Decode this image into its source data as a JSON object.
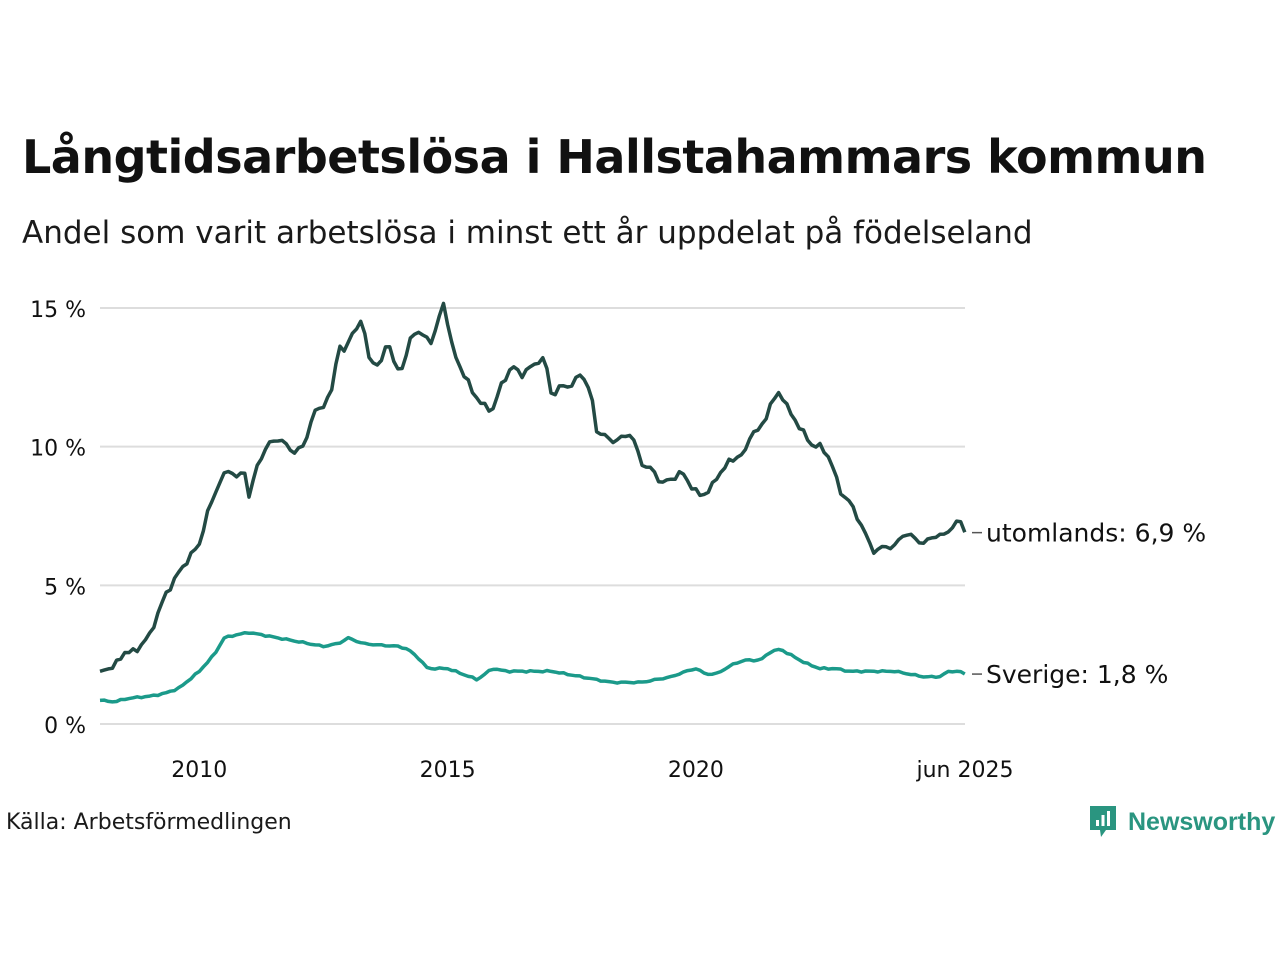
{
  "title": "Långtidsarbetslösa i Hallstahammars kommun",
  "subtitle": "Andel som varit arbetslösa i minst ett år uppdelat på födelseland",
  "source": "Källa: Arbetsförmedlingen",
  "brand": {
    "name": "Newsworthy",
    "icon": "newsworthy-logo-icon",
    "color": "#2a9580"
  },
  "chart_data": {
    "type": "line",
    "x_start": 2008.0,
    "x_end": 2025.42,
    "x_step": 0.0833,
    "ylim": [
      0,
      15.5
    ],
    "y_ticks": [
      {
        "value": 0,
        "label": "0 %"
      },
      {
        "value": 5,
        "label": "5 %"
      },
      {
        "value": 10,
        "label": "10 %"
      },
      {
        "value": 15,
        "label": "15 %"
      }
    ],
    "x_ticks": [
      {
        "value": 2010,
        "label": "2010"
      },
      {
        "value": 2015,
        "label": "2015"
      },
      {
        "value": 2020,
        "label": "2020"
      },
      {
        "value": 2025.42,
        "label": "jun 2025"
      }
    ],
    "grid": true,
    "series": [
      {
        "name": "utomlands",
        "color": "#234a44",
        "end_label": "utomlands: 6,9 %",
        "end_value": 6.9,
        "keypoints": [
          [
            2008.0,
            1.9
          ],
          [
            2008.3,
            2.1
          ],
          [
            2008.5,
            2.6
          ],
          [
            2008.7,
            2.6
          ],
          [
            2009.0,
            3.2
          ],
          [
            2009.3,
            4.6
          ],
          [
            2009.6,
            5.5
          ],
          [
            2010.0,
            6.5
          ],
          [
            2010.2,
            7.8
          ],
          [
            2010.4,
            8.7
          ],
          [
            2010.6,
            9.2
          ],
          [
            2010.8,
            8.8
          ],
          [
            2010.9,
            9.3
          ],
          [
            2011.0,
            8.2
          ],
          [
            2011.2,
            9.5
          ],
          [
            2011.4,
            10.1
          ],
          [
            2011.6,
            10.3
          ],
          [
            2011.9,
            9.8
          ],
          [
            2012.1,
            10.0
          ],
          [
            2012.3,
            11.2
          ],
          [
            2012.5,
            11.5
          ],
          [
            2012.7,
            12.1
          ],
          [
            2012.8,
            13.9
          ],
          [
            2012.9,
            13.3
          ],
          [
            2013.1,
            14.2
          ],
          [
            2013.3,
            14.5
          ],
          [
            2013.4,
            13.3
          ],
          [
            2013.6,
            12.8
          ],
          [
            2013.8,
            13.9
          ],
          [
            2013.9,
            13.0
          ],
          [
            2014.1,
            12.8
          ],
          [
            2014.3,
            14.2
          ],
          [
            2014.5,
            14.0
          ],
          [
            2014.7,
            13.8
          ],
          [
            2014.8,
            14.4
          ],
          [
            2014.9,
            15.3
          ],
          [
            2015.0,
            14.5
          ],
          [
            2015.1,
            13.5
          ],
          [
            2015.3,
            12.7
          ],
          [
            2015.5,
            12.0
          ],
          [
            2015.7,
            11.5
          ],
          [
            2015.9,
            11.3
          ],
          [
            2016.1,
            12.3
          ],
          [
            2016.3,
            12.9
          ],
          [
            2016.5,
            12.6
          ],
          [
            2016.7,
            12.9
          ],
          [
            2016.9,
            13.2
          ],
          [
            2017.0,
            12.8
          ],
          [
            2017.1,
            11.8
          ],
          [
            2017.3,
            12.2
          ],
          [
            2017.5,
            12.2
          ],
          [
            2017.7,
            12.7
          ],
          [
            2017.9,
            11.8
          ],
          [
            2018.0,
            10.6
          ],
          [
            2018.3,
            10.2
          ],
          [
            2018.5,
            10.3
          ],
          [
            2018.7,
            10.5
          ],
          [
            2018.9,
            9.4
          ],
          [
            2019.1,
            9.2
          ],
          [
            2019.3,
            8.7
          ],
          [
            2019.5,
            8.8
          ],
          [
            2019.7,
            9.1
          ],
          [
            2019.9,
            8.6
          ],
          [
            2020.1,
            8.2
          ],
          [
            2020.3,
            8.5
          ],
          [
            2020.5,
            9.1
          ],
          [
            2020.7,
            9.5
          ],
          [
            2021.0,
            9.8
          ],
          [
            2021.1,
            10.5
          ],
          [
            2021.3,
            10.6
          ],
          [
            2021.5,
            11.5
          ],
          [
            2021.7,
            12.0
          ],
          [
            2021.9,
            11.2
          ],
          [
            2022.1,
            10.7
          ],
          [
            2022.3,
            10.1
          ],
          [
            2022.5,
            10.0
          ],
          [
            2022.7,
            9.6
          ],
          [
            2022.9,
            8.4
          ],
          [
            2023.1,
            8.0
          ],
          [
            2023.3,
            7.3
          ],
          [
            2023.5,
            6.5
          ],
          [
            2023.6,
            6.2
          ],
          [
            2023.8,
            6.4
          ],
          [
            2024.0,
            6.4
          ],
          [
            2024.2,
            6.9
          ],
          [
            2024.4,
            6.7
          ],
          [
            2024.6,
            6.5
          ],
          [
            2024.8,
            6.8
          ],
          [
            2025.0,
            6.8
          ],
          [
            2025.2,
            7.2
          ],
          [
            2025.33,
            7.3
          ],
          [
            2025.42,
            6.9
          ]
        ]
      },
      {
        "name": "Sverige",
        "color": "#1b9a8a",
        "end_label": "Sverige: 1,8 %",
        "end_value": 1.8,
        "keypoints": [
          [
            2008.0,
            0.85
          ],
          [
            2008.3,
            0.8
          ],
          [
            2008.5,
            0.9
          ],
          [
            2008.7,
            0.95
          ],
          [
            2009.0,
            1.0
          ],
          [
            2009.3,
            1.1
          ],
          [
            2009.6,
            1.3
          ],
          [
            2010.0,
            1.9
          ],
          [
            2010.3,
            2.5
          ],
          [
            2010.5,
            3.1
          ],
          [
            2010.7,
            3.2
          ],
          [
            2011.0,
            3.3
          ],
          [
            2011.3,
            3.2
          ],
          [
            2011.6,
            3.1
          ],
          [
            2011.9,
            3.0
          ],
          [
            2012.2,
            2.9
          ],
          [
            2012.5,
            2.8
          ],
          [
            2012.8,
            2.9
          ],
          [
            2013.0,
            3.1
          ],
          [
            2013.3,
            2.9
          ],
          [
            2013.6,
            2.85
          ],
          [
            2014.0,
            2.8
          ],
          [
            2014.2,
            2.7
          ],
          [
            2014.4,
            2.4
          ],
          [
            2014.6,
            2.0
          ],
          [
            2015.0,
            2.0
          ],
          [
            2015.3,
            1.8
          ],
          [
            2015.6,
            1.6
          ],
          [
            2015.9,
            2.0
          ],
          [
            2016.2,
            1.9
          ],
          [
            2016.5,
            1.9
          ],
          [
            2016.8,
            1.9
          ],
          [
            2017.1,
            1.9
          ],
          [
            2017.4,
            1.8
          ],
          [
            2017.7,
            1.7
          ],
          [
            2018.0,
            1.6
          ],
          [
            2018.3,
            1.5
          ],
          [
            2018.6,
            1.5
          ],
          [
            2018.9,
            1.5
          ],
          [
            2019.2,
            1.6
          ],
          [
            2019.5,
            1.7
          ],
          [
            2019.8,
            1.9
          ],
          [
            2020.0,
            2.0
          ],
          [
            2020.2,
            1.8
          ],
          [
            2020.4,
            1.8
          ],
          [
            2020.6,
            2.0
          ],
          [
            2020.8,
            2.2
          ],
          [
            2021.0,
            2.3
          ],
          [
            2021.3,
            2.3
          ],
          [
            2021.5,
            2.6
          ],
          [
            2021.7,
            2.7
          ],
          [
            2021.9,
            2.5
          ],
          [
            2022.2,
            2.2
          ],
          [
            2022.5,
            2.0
          ],
          [
            2022.8,
            2.0
          ],
          [
            2023.1,
            1.9
          ],
          [
            2023.4,
            1.9
          ],
          [
            2023.7,
            1.9
          ],
          [
            2024.0,
            1.9
          ],
          [
            2024.3,
            1.8
          ],
          [
            2024.6,
            1.7
          ],
          [
            2024.9,
            1.7
          ],
          [
            2025.1,
            1.9
          ],
          [
            2025.3,
            1.9
          ],
          [
            2025.42,
            1.8
          ]
        ]
      }
    ]
  }
}
